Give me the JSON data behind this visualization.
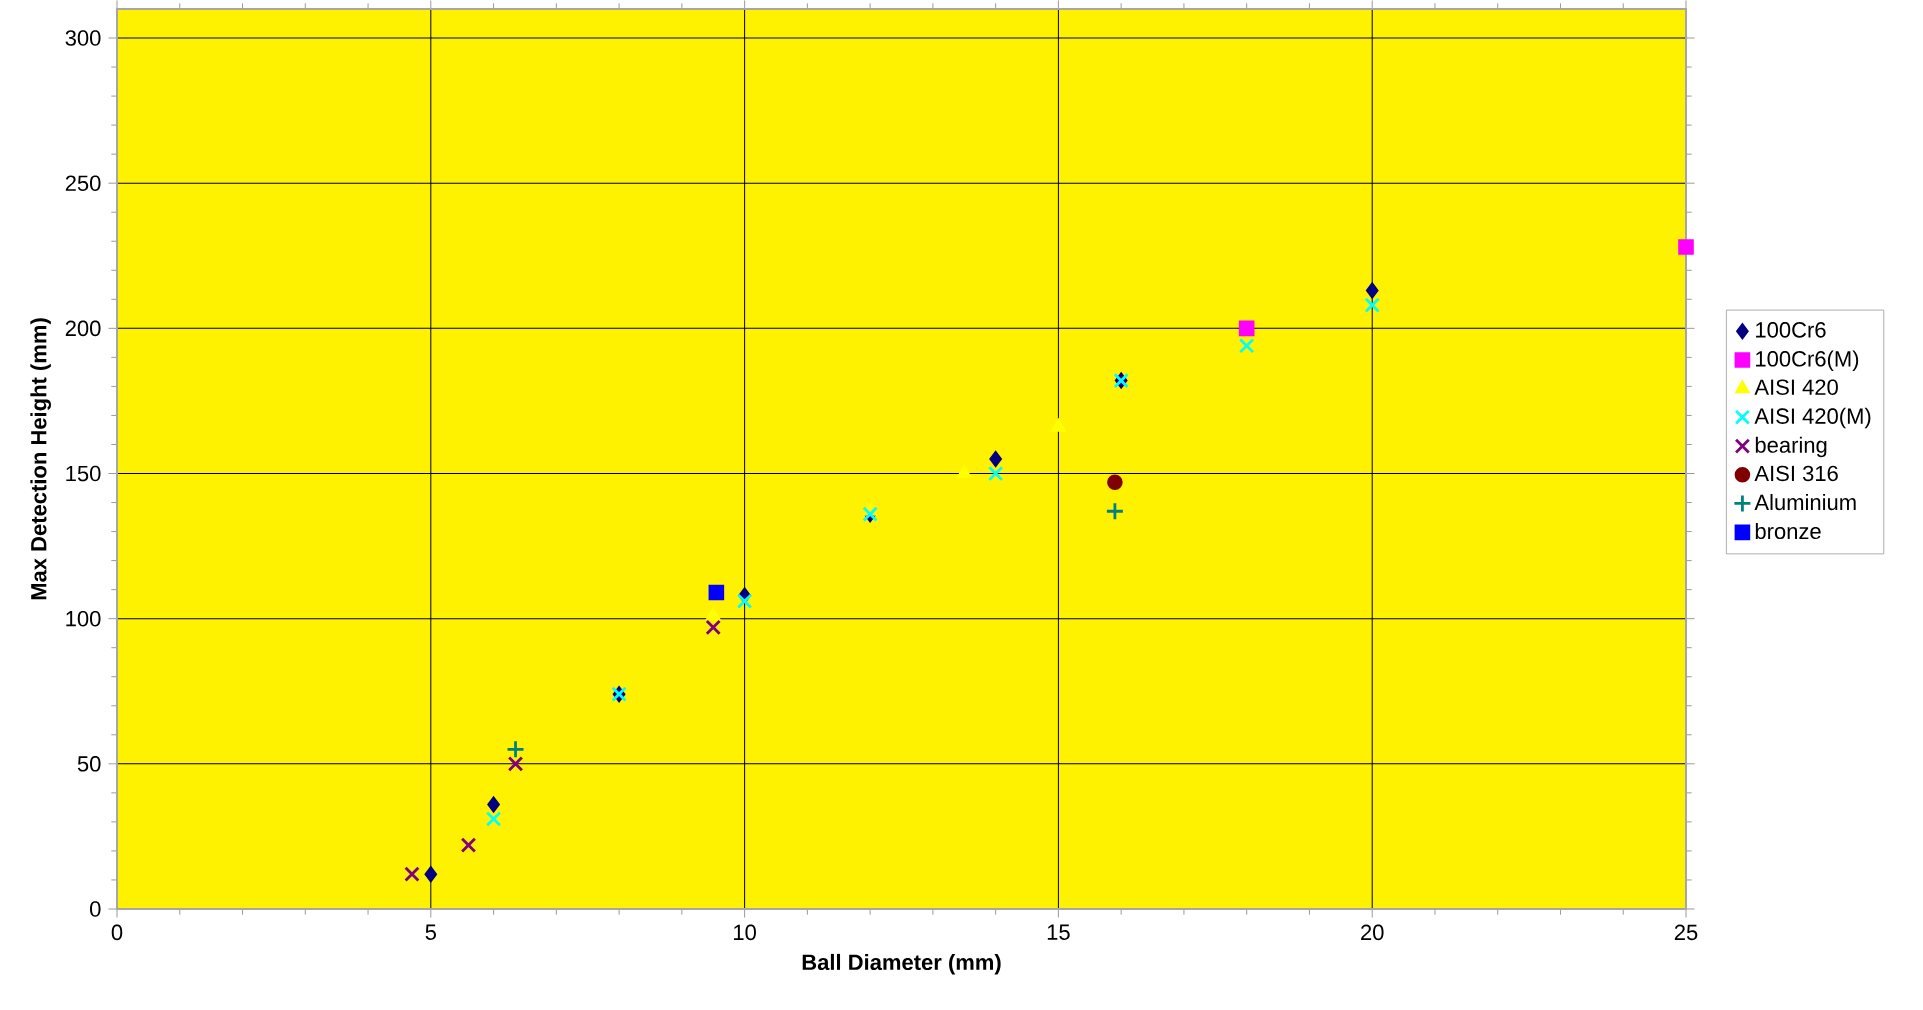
{
  "chart_data": {
    "type": "scatter",
    "xlabel": "Ball Diameter (mm)",
    "ylabel": "Max Detection Height (mm)",
    "xlim": [
      0,
      25
    ],
    "ylim": [
      0,
      310
    ],
    "xticks": [
      0,
      5,
      10,
      15,
      20,
      25
    ],
    "yticks": [
      0,
      50,
      100,
      150,
      200,
      250,
      300
    ],
    "grid": true,
    "legend": "right",
    "series": [
      {
        "name": "100Cr6",
        "color": "#000080",
        "marker": "diamond",
        "x": [
          5,
          6,
          8,
          10,
          12,
          14,
          16,
          20
        ],
        "values": [
          12,
          36,
          74,
          108,
          136,
          155,
          182,
          213
        ]
      },
      {
        "name": "100Cr6(M)",
        "color": "#ff00ff",
        "marker": "square",
        "x": [
          18,
          25
        ],
        "values": [
          200,
          228
        ]
      },
      {
        "name": "AISI 420",
        "color": "#ffff00",
        "marker": "triangle",
        "x": [
          9.5,
          12,
          13.5,
          15
        ],
        "values": [
          101,
          137,
          150,
          166
        ]
      },
      {
        "name": "AISI 420(M)",
        "color": "#00ffff",
        "marker": "cross",
        "x": [
          6,
          8,
          10,
          12,
          14,
          16,
          18,
          20
        ],
        "values": [
          31,
          74,
          106,
          136,
          150,
          182,
          194,
          208
        ]
      },
      {
        "name": "bearing",
        "color": "#800080",
        "marker": "cross",
        "x": [
          4.7,
          5.6,
          6.35,
          9.5
        ],
        "values": [
          12,
          22,
          50,
          97
        ]
      },
      {
        "name": "AISI 316",
        "color": "#800000",
        "marker": "circle",
        "x": [
          15.9
        ],
        "values": [
          147
        ]
      },
      {
        "name": "Aluminium",
        "color": "#008080",
        "marker": "plus",
        "x": [
          6.35,
          15.9
        ],
        "values": [
          55,
          137
        ]
      },
      {
        "name": "bronze",
        "color": "#0000ff",
        "marker": "square",
        "x": [
          9.55
        ],
        "values": [
          109
        ]
      }
    ]
  }
}
